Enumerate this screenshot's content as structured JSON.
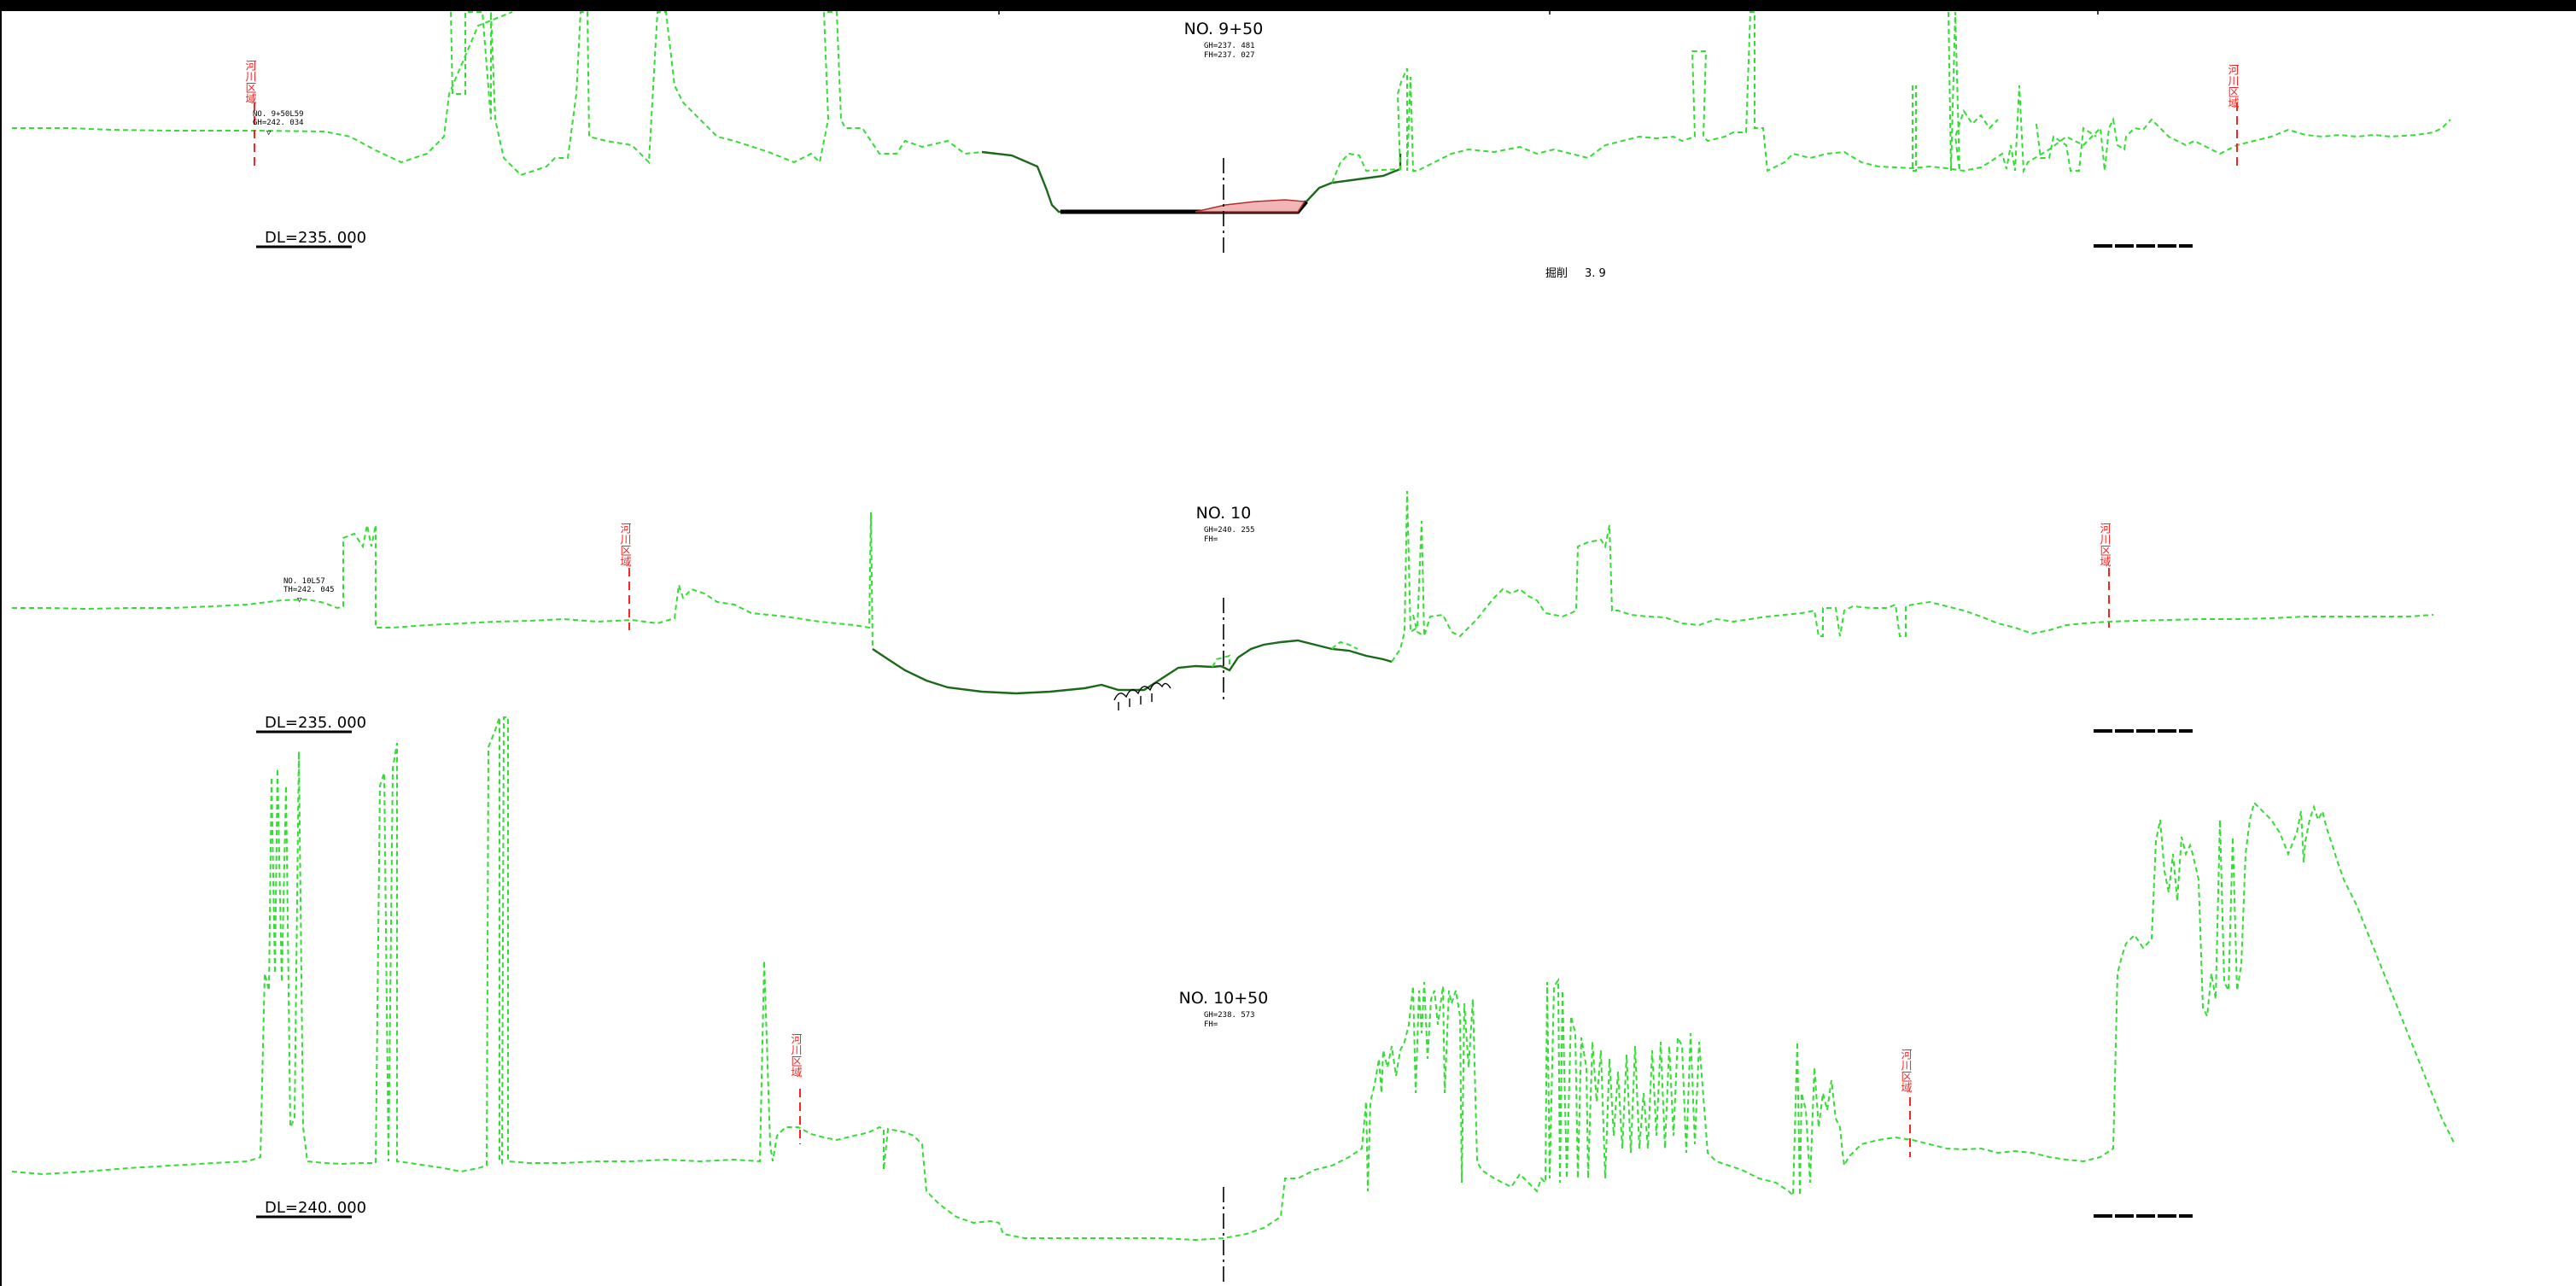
{
  "sections": [
    {
      "id": "s1",
      "station": "NO. 9+50",
      "gh": "GH=237. 481",
      "fh": "FH=237. 027",
      "dl": "DL=235. 000",
      "ref_station": "NO. 9+50L59",
      "ref_gh": "GH=242. 034",
      "river_label": "河川区域"
    },
    {
      "id": "s2",
      "station": "NO. 10",
      "gh": "GH=240. 255",
      "fh": "FH=",
      "dl": "DL=235. 000",
      "ref_station": "NO. 10L57",
      "ref_gh": "TH=242. 045",
      "river_label": "河川区域"
    },
    {
      "id": "s3",
      "station": "NO. 10+50",
      "gh": "GH=238. 573",
      "fh": "FH=",
      "dl": "DL=240. 000",
      "river_label": "河川区域"
    }
  ],
  "note": {
    "label": "掘削",
    "value": "3. 9"
  },
  "colors": {
    "terrain": "#33dd33",
    "river_boundary": "#ff2020",
    "cut_area": "#f2b6b6",
    "design_line": "#000000"
  }
}
